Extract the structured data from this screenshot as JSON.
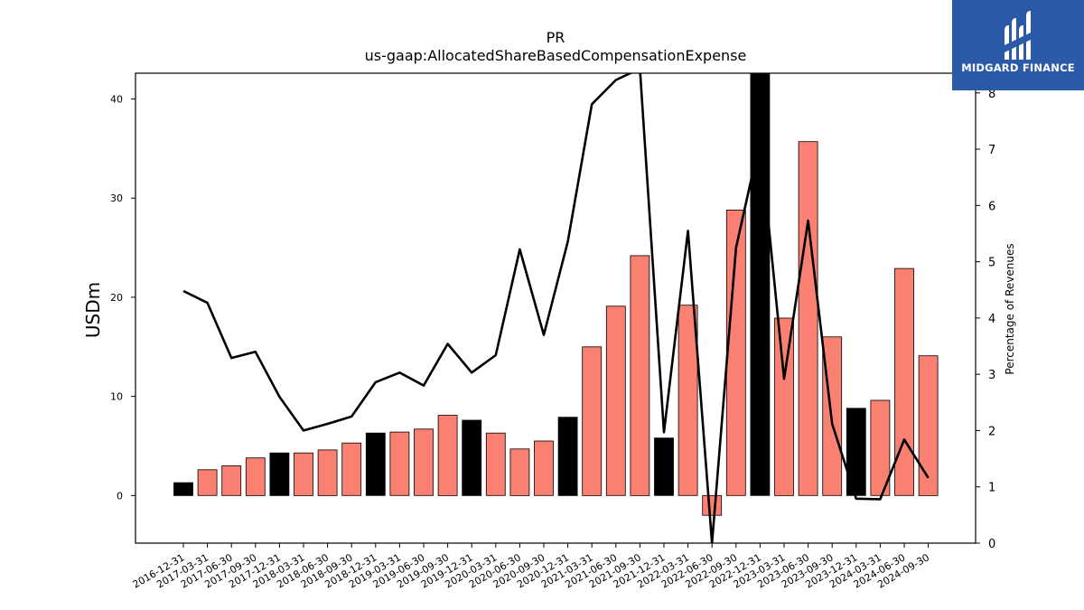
{
  "title": "PR",
  "subtitle": "us-gaap:AllocatedShareBasedCompensationExpense",
  "logo": {
    "text": "MIDGARD FINANCE",
    "icon": "midgard-logo-icon",
    "color": "#2b5aa8"
  },
  "chart_data": {
    "type": "bar",
    "categories": [
      "2016-12-31",
      "2017-03-31",
      "2017-06-30",
      "2017-09-30",
      "2017-12-31",
      "2018-03-31",
      "2018-06-30",
      "2018-09-30",
      "2018-12-31",
      "2019-03-31",
      "2019-06-30",
      "2019-09-30",
      "2019-12-31",
      "2020-03-31",
      "2020-06-30",
      "2020-09-30",
      "2020-12-31",
      "2021-03-31",
      "2021-06-30",
      "2021-09-30",
      "2021-12-31",
      "2022-03-31",
      "2022-06-30",
      "2022-09-30",
      "2022-12-31",
      "2023-03-31",
      "2023-06-30",
      "2023-09-30",
      "2023-12-31",
      "2024-03-31",
      "2024-06-30",
      "2024-09-30"
    ],
    "series": [
      {
        "name": "",
        "kind": "bar",
        "axis": "left",
        "values": [
          1.3,
          2.6,
          3.0,
          3.8,
          4.3,
          4.3,
          4.6,
          5.3,
          6.3,
          6.4,
          6.7,
          8.1,
          7.6,
          6.3,
          4.7,
          5.5,
          7.9,
          15.0,
          19.1,
          24.2,
          5.8,
          19.2,
          -2.0,
          28.8,
          42.6,
          17.9,
          35.7,
          16.0,
          8.8,
          9.6,
          22.9,
          14.1
        ],
        "colors": [
          "#000000",
          "#fa8072",
          "#fa8072",
          "#fa8072",
          "#000000",
          "#fa8072",
          "#fa8072",
          "#fa8072",
          "#000000",
          "#fa8072",
          "#fa8072",
          "#fa8072",
          "#000000",
          "#fa8072",
          "#fa8072",
          "#fa8072",
          "#000000",
          "#fa8072",
          "#fa8072",
          "#fa8072",
          "#000000",
          "#fa8072",
          "#fa8072",
          "#fa8072",
          "#000000",
          "#fa8072",
          "#fa8072",
          "#fa8072",
          "#000000",
          "#fa8072",
          "#fa8072",
          "#fa8072"
        ]
      },
      {
        "name": "",
        "kind": "line",
        "axis": "right",
        "color": "#000000",
        "values": [
          4.48,
          4.27,
          3.29,
          3.4,
          2.6,
          2.0,
          2.12,
          2.25,
          2.86,
          3.03,
          2.8,
          3.54,
          3.03,
          3.34,
          5.22,
          3.7,
          5.36,
          7.8,
          8.23,
          8.43,
          1.97,
          5.55,
          0.0,
          5.25,
          7.17,
          2.92,
          5.73,
          2.12,
          0.79,
          0.78,
          1.84,
          1.16
        ]
      }
    ],
    "ylabel": "USDm",
    "y2label": "Percentage of Revenues",
    "ylim": [
      -4.8,
      42.6
    ],
    "y2lim": [
      0,
      8.35
    ],
    "yticks": [
      0,
      10,
      20,
      30,
      40
    ],
    "y2ticks": [
      0,
      1,
      2,
      3,
      4,
      5,
      6,
      7,
      8
    ],
    "grid": false,
    "legend": "none"
  }
}
